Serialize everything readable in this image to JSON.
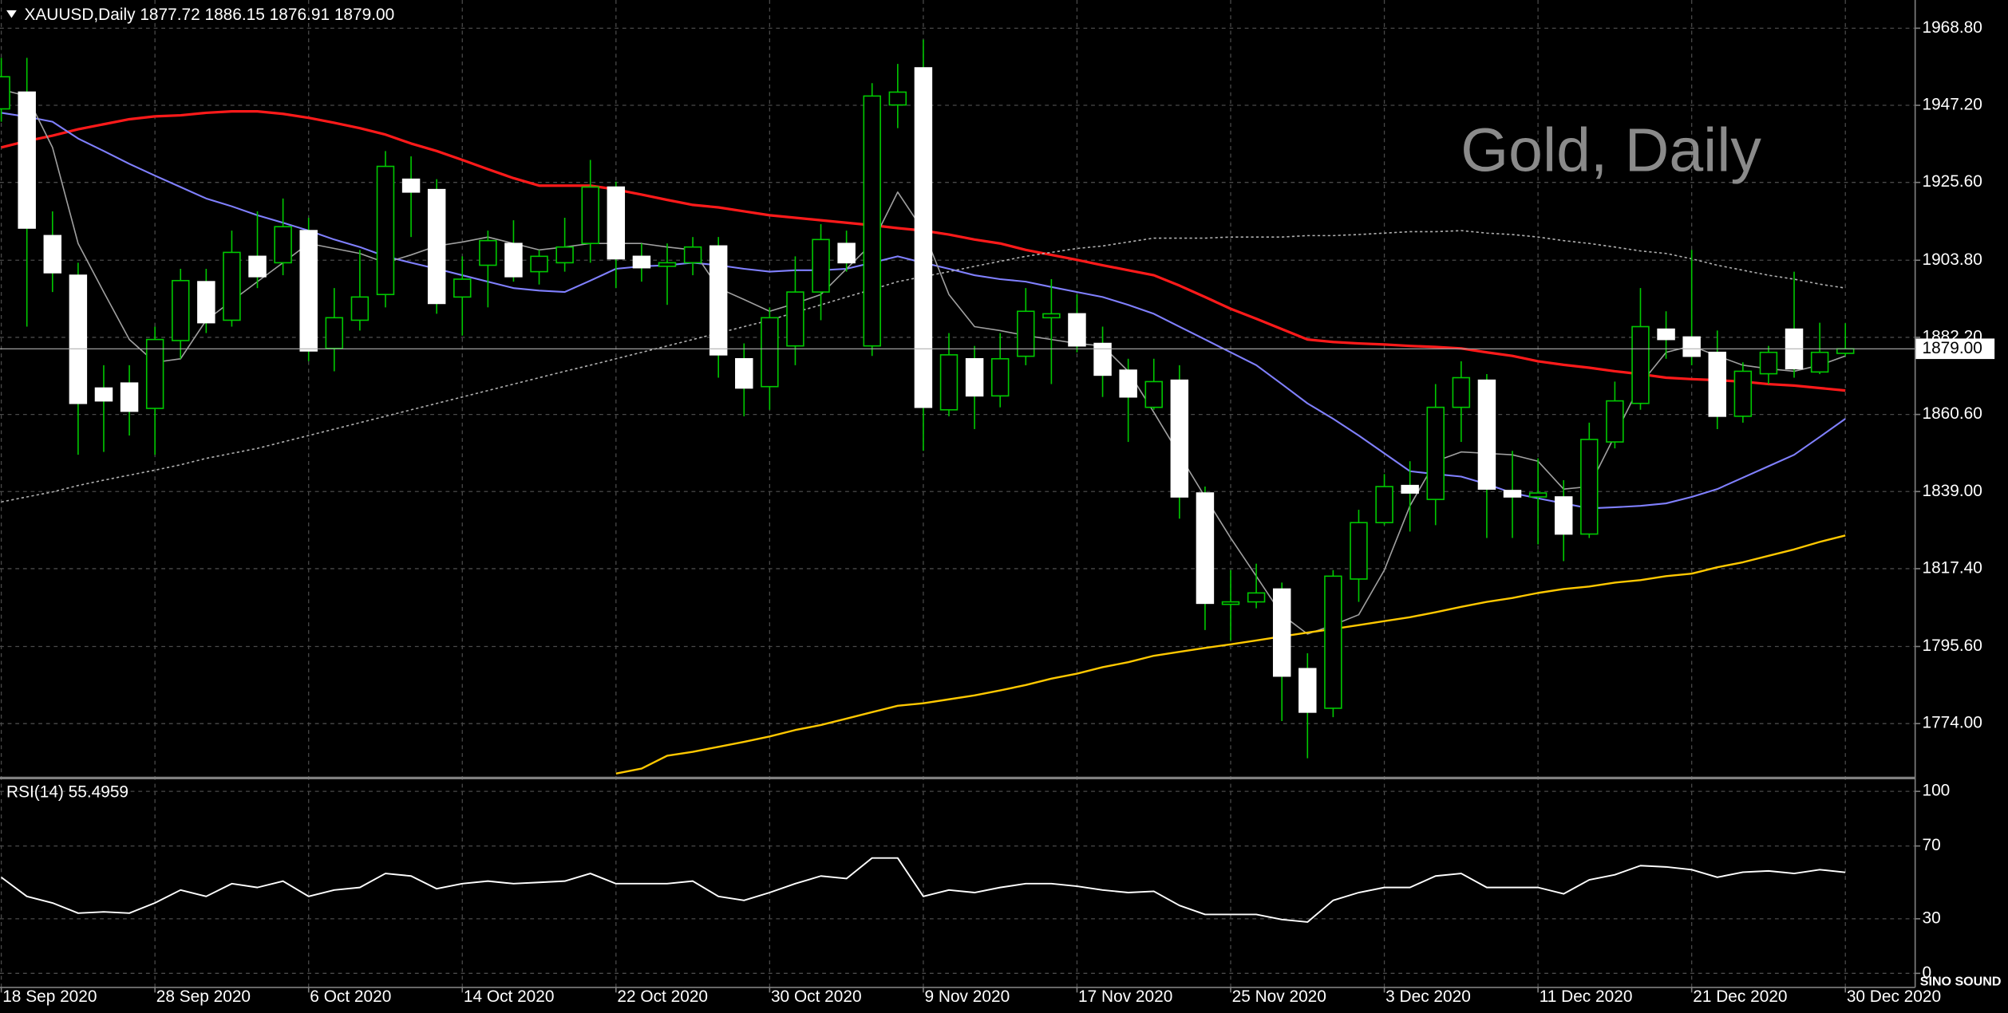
{
  "header": "XAUUSD,Daily  1877.72 1886.15 1876.91 1879.00",
  "watermark": "Gold, Daily",
  "logo": "SINO SOUND",
  "chart_data": [
    {
      "type": "candlestick",
      "x": [
        "18 Sep 2020",
        null,
        null,
        null,
        null,
        null,
        "28 Sep 2020",
        null,
        null,
        null,
        null,
        null,
        "6 Oct 2020",
        null,
        null,
        null,
        null,
        null,
        "14 Oct 2020",
        null,
        null,
        null,
        null,
        null,
        "22 Oct 2020",
        null,
        null,
        null,
        null,
        null,
        "30 Oct 2020",
        null,
        null,
        null,
        null,
        null,
        "9 Nov 2020",
        null,
        null,
        null,
        null,
        null,
        "17 Nov 2020",
        null,
        null,
        null,
        null,
        null,
        "25 Nov 2020",
        null,
        null,
        null,
        null,
        null,
        "3 Dec 2020",
        null,
        null,
        null,
        null,
        null,
        "11 Dec 2020",
        null,
        null,
        null,
        null,
        null,
        "21 Dec 2020",
        null,
        null,
        null,
        null,
        null,
        "30 Dec 2020"
      ],
      "open": [
        1946.2,
        1950.9,
        1910.7,
        1899.6,
        1868.0,
        1869.4,
        1862.3,
        1881.3,
        1897.8,
        1887.0,
        1904.9,
        1903.1,
        1912.1,
        1879.1,
        1887.0,
        1894.2,
        1926.5,
        1923.6,
        1893.5,
        1902.4,
        1908.5,
        1900.6,
        1903.1,
        1908.5,
        1924.3,
        1904.9,
        1902.1,
        1903.1,
        1907.8,
        1876.2,
        1868.4,
        1879.8,
        1894.9,
        1908.5,
        1879.8,
        1947.3,
        1957.7,
        1861.9,
        1876.2,
        1865.8,
        1876.9,
        1887.7,
        1888.8,
        1880.5,
        1873.0,
        1862.6,
        1870.2,
        1838.6,
        1807.4,
        1808.1,
        1811.7,
        1789.4,
        1778.3,
        1814.5,
        1830.3,
        1840.7,
        1836.8,
        1862.6,
        1870.2,
        1839.3,
        1837.5,
        1837.5,
        1827.1,
        1852.9,
        1863.7,
        1884.5,
        1882.3,
        1878.0,
        1860.1,
        1872.0,
        1884.5,
        1872.5,
        1877.72
      ],
      "high": [
        1960.5,
        1960.5,
        1917.5,
        1903.1,
        1874.4,
        1874.4,
        1885.2,
        1901.4,
        1901.4,
        1912.1,
        1917.5,
        1921.1,
        1915.7,
        1896.0,
        1906.7,
        1934.4,
        1932.9,
        1926.5,
        1904.9,
        1912.1,
        1915.0,
        1906.7,
        1915.7,
        1931.9,
        1925.8,
        1908.5,
        1908.5,
        1910.3,
        1910.3,
        1880.5,
        1890.6,
        1904.9,
        1913.9,
        1912.1,
        1953.4,
        1958.8,
        1965.6,
        1883.4,
        1879.8,
        1883.4,
        1896.0,
        1898.5,
        1894.2,
        1885.2,
        1876.2,
        1876.2,
        1874.4,
        1840.4,
        1817.0,
        1818.8,
        1813.5,
        1793.7,
        1817.0,
        1833.9,
        1843.9,
        1847.5,
        1869.1,
        1875.5,
        1871.9,
        1850.4,
        1848.3,
        1842.2,
        1858.3,
        1869.8,
        1896.0,
        1889.5,
        1906.7,
        1884.1,
        1875.2,
        1879.8,
        1900.6,
        1886.3,
        1886.15
      ],
      "low": [
        1942.6,
        1885.2,
        1894.9,
        1849.3,
        1850.1,
        1854.7,
        1849.3,
        1876.2,
        1883.4,
        1885.2,
        1896.0,
        1899.6,
        1875.5,
        1872.7,
        1884.1,
        1890.6,
        1910.3,
        1888.8,
        1882.7,
        1890.6,
        1897.8,
        1897.0,
        1900.6,
        1903.1,
        1896.0,
        1897.8,
        1891.3,
        1899.6,
        1870.9,
        1860.1,
        1861.9,
        1874.4,
        1887.0,
        1900.6,
        1877.0,
        1940.8,
        1850.4,
        1860.1,
        1856.5,
        1862.6,
        1874.4,
        1869.1,
        1878.0,
        1865.5,
        1852.9,
        1861.9,
        1831.4,
        1800.2,
        1797.3,
        1806.3,
        1774.7,
        1764.3,
        1775.8,
        1808.1,
        1829.6,
        1827.8,
        1829.6,
        1852.9,
        1826.0,
        1826.0,
        1824.2,
        1819.5,
        1826.0,
        1851.1,
        1861.9,
        1876.2,
        1874.4,
        1856.5,
        1858.3,
        1869.1,
        1870.9,
        1871.9,
        1876.91
      ],
      "close": [
        1955.2,
        1912.8,
        1900.3,
        1863.7,
        1864.4,
        1861.5,
        1881.6,
        1898.1,
        1886.3,
        1906.0,
        1899.2,
        1913.2,
        1878.4,
        1887.7,
        1893.5,
        1930.1,
        1922.9,
        1891.7,
        1898.5,
        1909.3,
        1899.2,
        1904.9,
        1907.5,
        1924.3,
        1904.2,
        1901.7,
        1903.1,
        1907.5,
        1877.3,
        1868.0,
        1887.7,
        1894.9,
        1909.6,
        1903.1,
        1949.8,
        1950.9,
        1862.6,
        1877.3,
        1865.8,
        1876.2,
        1889.5,
        1888.8,
        1879.8,
        1871.6,
        1865.5,
        1869.8,
        1837.5,
        1807.7,
        1808.1,
        1810.6,
        1787.3,
        1777.2,
        1815.3,
        1830.3,
        1840.4,
        1838.6,
        1862.6,
        1870.9,
        1839.7,
        1837.5,
        1838.6,
        1827.1,
        1853.6,
        1864.4,
        1885.2,
        1881.6,
        1876.9,
        1860.1,
        1872.7,
        1878.0,
        1873.4,
        1878.0,
        1879.0
      ],
      "up_color": "#00c800",
      "down_color": "#ffffff",
      "wick_color": "#00c800",
      "ylim": [
        1759.3,
        1976.7
      ],
      "yticks": [
        {
          "value": 1774,
          "label": "1774.00"
        },
        {
          "value": 1795.6,
          "label": "1795.60"
        },
        {
          "value": 1817.4,
          "label": "1817.40"
        },
        {
          "value": 1839,
          "label": "1839.00"
        },
        {
          "value": 1860.6,
          "label": "1860.60"
        },
        {
          "value": 1882.2,
          "label": "1882.20"
        },
        {
          "value": 1903.8,
          "label": "1903.80"
        },
        {
          "value": 1925.6,
          "label": "1925.60"
        },
        {
          "value": 1947.2,
          "label": "1947.20"
        },
        {
          "value": 1968.8,
          "label": "1968.80"
        }
      ],
      "grid": true,
      "last_price": {
        "value": 1879.0,
        "label": "1879.00"
      },
      "lines": [
        {
          "color": "#ff1a1a",
          "style": "solid",
          "values": [
            1935.4,
            1937.2,
            1938.7,
            1940.5,
            1941.9,
            1943.3,
            1944.1,
            1944.4,
            1945.1,
            1945.5,
            1945.5,
            1944.8,
            1943.7,
            1942.3,
            1940.8,
            1939.0,
            1936.5,
            1934.4,
            1931.9,
            1929.3,
            1926.8,
            1924.7,
            1924.7,
            1924.7,
            1923.6,
            1922.2,
            1920.7,
            1919.3,
            1918.6,
            1917.5,
            1916.4,
            1915.7,
            1915.0,
            1914.3,
            1913.6,
            1912.8,
            1912.1,
            1911.0,
            1909.6,
            1908.5,
            1906.7,
            1905.3,
            1903.9,
            1902.4,
            1901.0,
            1899.6,
            1896.7,
            1893.5,
            1890.2,
            1887.4,
            1884.5,
            1881.6,
            1880.9,
            1880.5,
            1880.2,
            1879.8,
            1879.5,
            1879.1,
            1878.0,
            1877.0,
            1875.5,
            1874.5,
            1873.7,
            1872.7,
            1871.9,
            1870.9,
            1870.5,
            1870.2,
            1869.8,
            1869.1,
            1868.7,
            1868.0,
            1867.3
          ]
        },
        {
          "color": "#8080ff",
          "style": "solid",
          "values": [
            1945.1,
            1944.0,
            1942.6,
            1937.9,
            1934.4,
            1930.8,
            1927.5,
            1924.3,
            1921.1,
            1918.9,
            1916.4,
            1914.3,
            1912.1,
            1909.6,
            1907.5,
            1904.9,
            1903.1,
            1901.4,
            1899.6,
            1897.8,
            1896.0,
            1895.3,
            1894.9,
            1898.1,
            1901.4,
            1902.1,
            1902.4,
            1903.1,
            1902.4,
            1901.4,
            1900.6,
            1901.0,
            1901.0,
            1901.4,
            1903.1,
            1904.9,
            1903.1,
            1901.4,
            1899.6,
            1898.5,
            1897.8,
            1896.3,
            1894.9,
            1893.5,
            1891.3,
            1888.8,
            1885.2,
            1881.6,
            1878.0,
            1874.4,
            1869.1,
            1863.7,
            1859.4,
            1854.7,
            1849.7,
            1844.7,
            1843.9,
            1843.2,
            1841.1,
            1838.6,
            1837.1,
            1835.7,
            1834.3,
            1834.6,
            1835.0,
            1835.7,
            1837.5,
            1839.7,
            1842.9,
            1846.1,
            1849.3,
            1854.3,
            1859.4
          ]
        },
        {
          "color": "#a0a0a0",
          "style": "solid",
          "values": [
            1951.6,
            1949.8,
            1935.4,
            1908.5,
            1894.9,
            1881.6,
            1875.2,
            1876.2,
            1887.0,
            1892.4,
            1897.8,
            1903.1,
            1908.5,
            1907.1,
            1905.7,
            1903.1,
            1905.3,
            1907.8,
            1908.9,
            1910.3,
            1908.5,
            1906.7,
            1907.5,
            1908.5,
            1908.5,
            1908.5,
            1907.5,
            1906.7,
            1896.0,
            1892.8,
            1889.5,
            1891.7,
            1894.2,
            1901.4,
            1908.5,
            1922.9,
            1912.1,
            1894.2,
            1885.2,
            1884.1,
            1882.7,
            1881.6,
            1880.5,
            1879.8,
            1872.7,
            1861.2,
            1849.3,
            1837.5,
            1826.0,
            1815.3,
            1804.5,
            1799.1,
            1801.6,
            1804.5,
            1817.0,
            1835.0,
            1847.5,
            1850.1,
            1849.7,
            1849.3,
            1847.5,
            1839.7,
            1840.4,
            1854.7,
            1869.1,
            1878.0,
            1879.8,
            1877.0,
            1874.4,
            1873.4,
            1872.7,
            1874.4,
            1877.0
          ]
        },
        {
          "color": "#ffc800",
          "style": "solid",
          "values": [
            null,
            null,
            null,
            null,
            null,
            null,
            null,
            null,
            null,
            null,
            null,
            null,
            null,
            null,
            null,
            null,
            null,
            null,
            null,
            null,
            null,
            null,
            null,
            null,
            1760.0,
            1761.4,
            1765.0,
            1766.1,
            1767.5,
            1768.9,
            1770.4,
            1772.2,
            1773.6,
            1775.4,
            1777.2,
            1779.0,
            1779.7,
            1780.8,
            1781.9,
            1783.3,
            1784.8,
            1786.6,
            1788.0,
            1789.8,
            1791.2,
            1793.0,
            1794.1,
            1795.2,
            1796.2,
            1797.3,
            1798.4,
            1799.5,
            1800.5,
            1801.6,
            1802.7,
            1803.8,
            1805.2,
            1806.7,
            1808.1,
            1809.2,
            1810.6,
            1811.7,
            1812.4,
            1813.5,
            1814.2,
            1815.3,
            1816.0,
            1817.8,
            1819.2,
            1821.0,
            1822.8,
            1824.9,
            1826.7
          ]
        },
        {
          "color": "#b0b0b0",
          "style": "dotted",
          "values": [
            1836.1,
            1837.5,
            1838.9,
            1840.7,
            1842.2,
            1843.6,
            1845.0,
            1846.5,
            1848.3,
            1849.7,
            1851.1,
            1852.9,
            1854.7,
            1856.5,
            1858.3,
            1860.1,
            1861.9,
            1863.7,
            1865.5,
            1867.3,
            1869.1,
            1870.9,
            1872.7,
            1874.4,
            1876.2,
            1878.0,
            1879.8,
            1881.6,
            1883.4,
            1885.2,
            1887.0,
            1889.2,
            1891.3,
            1893.5,
            1895.6,
            1897.8,
            1899.2,
            1900.6,
            1902.1,
            1903.5,
            1904.9,
            1906.0,
            1907.1,
            1907.8,
            1908.9,
            1910.0,
            1910.0,
            1910.0,
            1910.3,
            1910.3,
            1910.3,
            1910.7,
            1910.7,
            1911.0,
            1911.4,
            1911.8,
            1911.8,
            1912.1,
            1911.4,
            1911.0,
            1910.3,
            1909.3,
            1908.5,
            1907.5,
            1906.4,
            1905.7,
            1904.2,
            1902.4,
            1901.0,
            1899.6,
            1898.5,
            1897.1,
            1896.0
          ]
        }
      ]
    },
    {
      "type": "line",
      "title": "RSI(14) 55.4959",
      "color": "#ffffff",
      "values": [
        52.8,
        42.3,
        38.7,
        33.1,
        33.8,
        33.1,
        38.7,
        45.8,
        42.3,
        49.3,
        47.2,
        50.7,
        42.3,
        45.8,
        47.2,
        54.9,
        53.5,
        46.5,
        49.3,
        50.7,
        49.3,
        50.0,
        50.7,
        54.9,
        49.3,
        49.3,
        49.3,
        50.7,
        42.3,
        40.1,
        44.4,
        49.3,
        53.5,
        52.1,
        63.4,
        63.4,
        42.3,
        45.8,
        44.4,
        47.2,
        49.3,
        49.3,
        47.9,
        45.8,
        44.4,
        45.1,
        37.3,
        32.4,
        32.4,
        32.4,
        29.6,
        28.2,
        40.1,
        44.4,
        47.2,
        47.2,
        53.5,
        54.9,
        47.2,
        47.2,
        47.2,
        43.7,
        51.4,
        54.2,
        59.2,
        58.5,
        57.0,
        52.8,
        55.6,
        56.3,
        54.9,
        57.0,
        55.4959
      ],
      "ylim": [
        -7.7,
        106.3
      ],
      "yticks": [
        0,
        30,
        70,
        100
      ],
      "grid": true
    }
  ]
}
